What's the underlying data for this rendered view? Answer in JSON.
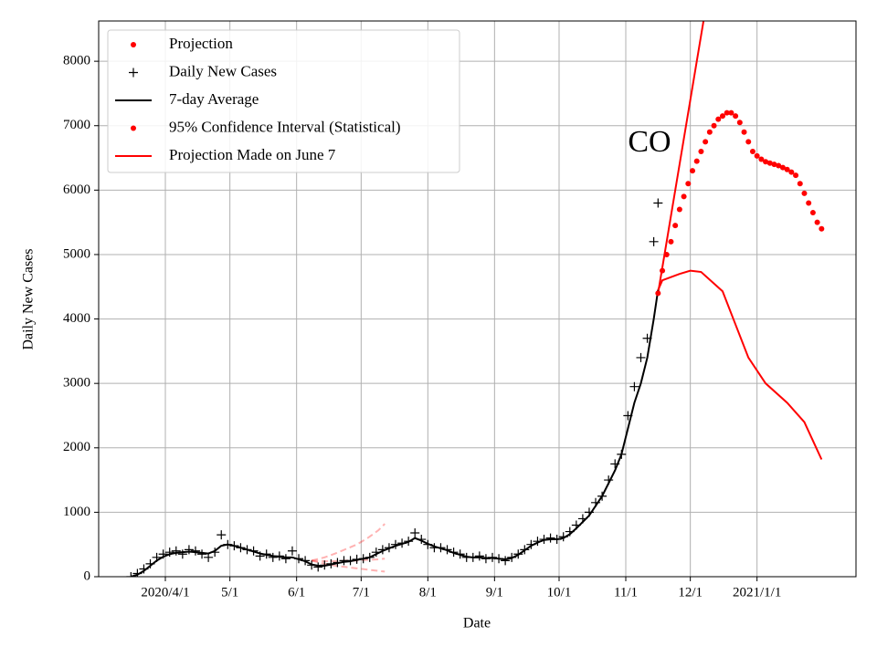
{
  "chart_data": {
    "type": "line",
    "xlabel": "Date",
    "ylabel": "Daily New Cases",
    "annotation": "CO",
    "grid": true,
    "legend": "upper left",
    "xlim": [
      60,
      412
    ],
    "ylim": [
      0,
      8625
    ],
    "xticks": [
      {
        "value": 91,
        "label": "2020/4/1"
      },
      {
        "value": 121,
        "label": "5/1"
      },
      {
        "value": 152,
        "label": "6/1"
      },
      {
        "value": 182,
        "label": "7/1"
      },
      {
        "value": 213,
        "label": "8/1"
      },
      {
        "value": 244,
        "label": "9/1"
      },
      {
        "value": 274,
        "label": "10/1"
      },
      {
        "value": 305,
        "label": "11/1"
      },
      {
        "value": 335,
        "label": "12/1"
      },
      {
        "value": 366,
        "label": "2021/1/1"
      }
    ],
    "yticks": [
      0,
      1000,
      2000,
      3000,
      4000,
      5000,
      6000,
      7000,
      8000
    ],
    "x": [
      75,
      78,
      81,
      84,
      87,
      90,
      93,
      96,
      99,
      102,
      105,
      108,
      111,
      114,
      117,
      120,
      123,
      126,
      129,
      132,
      135,
      138,
      141,
      144,
      147,
      150,
      153,
      156,
      159,
      162,
      165,
      168,
      171,
      174,
      177,
      180,
      183,
      186,
      189,
      192,
      195,
      198,
      201,
      204,
      207,
      210,
      213,
      216,
      219,
      222,
      225,
      228,
      231,
      234,
      237,
      240,
      243,
      246,
      249,
      252,
      255,
      258,
      261,
      264,
      267,
      270,
      273,
      276,
      279,
      282,
      285,
      288,
      291,
      294,
      297,
      300,
      303,
      306,
      309,
      312,
      315,
      318,
      320
    ],
    "series": [
      {
        "name": "Projection",
        "color": "#ff0000",
        "style": "dots",
        "legend_marker": "dot",
        "x": [
          320,
          322,
          324,
          326,
          328,
          330,
          332,
          334,
          336,
          338,
          340,
          342,
          344,
          346,
          348,
          350,
          352,
          354,
          356,
          358,
          360,
          362,
          364,
          366,
          368,
          370,
          372,
          374,
          376,
          378,
          380,
          382,
          384,
          386,
          388,
          390,
          392,
          394,
          396
        ],
        "values": [
          4400,
          4750,
          5000,
          5200,
          5450,
          5700,
          5900,
          6100,
          6300,
          6450,
          6600,
          6750,
          6900,
          7000,
          7100,
          7150,
          7200,
          7200,
          7150,
          7050,
          6900,
          6750,
          6600,
          6530,
          6480,
          6440,
          6420,
          6400,
          6380,
          6350,
          6320,
          6280,
          6230,
          6100,
          5950,
          5800,
          5650,
          5500,
          5400
        ]
      },
      {
        "name": "Daily New Cases",
        "color": "#000000",
        "style": "plus",
        "legend_marker": "plus",
        "values": [
          0,
          50,
          120,
          200,
          300,
          350,
          380,
          400,
          350,
          420,
          400,
          350,
          300,
          380,
          650,
          500,
          480,
          450,
          420,
          400,
          320,
          350,
          300,
          320,
          280,
          400,
          280,
          250,
          180,
          150,
          180,
          200,
          220,
          250,
          250,
          270,
          280,
          300,
          380,
          420,
          450,
          500,
          520,
          550,
          680,
          580,
          500,
          450,
          450,
          420,
          380,
          350,
          300,
          300,
          320,
          280,
          300,
          280,
          250,
          300,
          350,
          420,
          500,
          550,
          580,
          600,
          580,
          620,
          700,
          800,
          900,
          1000,
          1150,
          1250,
          1500,
          1750,
          1900,
          2500,
          2950,
          3400,
          3700,
          5200,
          5800
        ]
      },
      {
        "name": "7-day Average",
        "color": "#000000",
        "style": "line",
        "legend_marker": "line",
        "values": [
          0,
          30,
          90,
          170,
          250,
          310,
          350,
          370,
          380,
          390,
          380,
          370,
          360,
          400,
          480,
          500,
          480,
          450,
          420,
          390,
          360,
          340,
          320,
          310,
          300,
          300,
          270,
          240,
          190,
          170,
          170,
          190,
          210,
          230,
          240,
          260,
          280,
          300,
          350,
          400,
          440,
          480,
          510,
          540,
          600,
          560,
          510,
          470,
          440,
          410,
          370,
          340,
          310,
          300,
          300,
          290,
          290,
          280,
          270,
          290,
          340,
          410,
          480,
          530,
          570,
          580,
          580,
          600,
          660,
          750,
          850,
          950,
          1100,
          1250,
          1450,
          1650,
          1900,
          2300,
          2700,
          3000,
          3400,
          4000,
          4450
        ]
      },
      {
        "name": "95% Confidence Interval (Statistical)",
        "color": "#ff0000",
        "style": "band",
        "legend_marker": "dot",
        "upper_x": [
          320,
          325,
          330,
          335,
          340,
          345
        ],
        "upper": [
          4400,
          5400,
          6400,
          7400,
          8400,
          9400
        ],
        "lower_x": [
          320,
          322,
          330,
          335,
          340,
          346,
          350,
          355,
          362,
          370,
          380,
          388,
          396
        ],
        "lower": [
          4450,
          4600,
          4700,
          4750,
          4730,
          4550,
          4430,
          4000,
          3400,
          3000,
          2700,
          2400,
          1820
        ]
      },
      {
        "name": "Projection Made on June 7",
        "color": "#ff0000",
        "style": "dashed-band",
        "legend_marker": "line",
        "x": [
          159,
          165,
          170,
          175,
          180,
          185,
          190,
          193
        ],
        "upper": [
          250,
          300,
          360,
          430,
          500,
          600,
          720,
          820
        ],
        "values": [
          250,
          240,
          240,
          250,
          250,
          260,
          270,
          280
        ],
        "lower": [
          250,
          200,
          170,
          150,
          130,
          110,
          90,
          80
        ]
      }
    ]
  }
}
